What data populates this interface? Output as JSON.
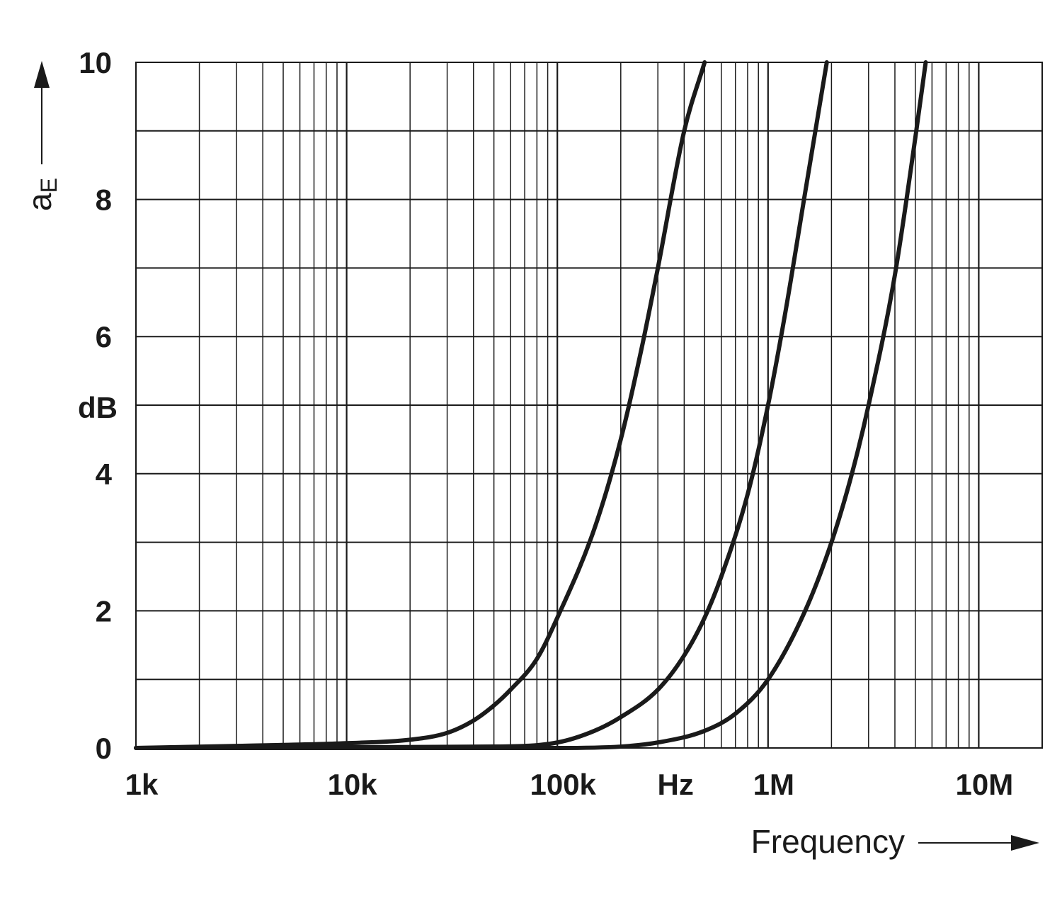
{
  "chart_data": {
    "type": "line",
    "x_scale": "log",
    "xlim": [
      1000,
      20000000
    ],
    "ylim": [
      0,
      10
    ],
    "grid": true,
    "x_ticks": [
      {
        "value": 1000,
        "label": "1k"
      },
      {
        "value": 10000,
        "label": "10k"
      },
      {
        "value": 100000,
        "label": "100k"
      },
      {
        "value": 1000000,
        "label": "1M"
      },
      {
        "value": 10000000,
        "label": "10M"
      }
    ],
    "x_unit": "Hz",
    "x_unit_position": 300000,
    "y_ticks": [
      {
        "value": 0,
        "label": "0"
      },
      {
        "value": 2,
        "label": "2"
      },
      {
        "value": 4,
        "label": "4"
      },
      {
        "value": 6,
        "label": "6"
      },
      {
        "value": 8,
        "label": "8"
      },
      {
        "value": 10,
        "label": "10"
      }
    ],
    "y_unit": "dB",
    "y_unit_position": 5,
    "xlabel": "Frequency",
    "ylabel_main": "a",
    "ylabel_sub": "E",
    "line_color": "#1a1a1a",
    "grid_color": "#1a1a1a",
    "series": [
      {
        "x": [
          1000,
          3000,
          10000,
          20000,
          30000,
          40000,
          50000,
          60000,
          80000,
          100000,
          150000,
          200000,
          250000,
          300000,
          400000,
          500000
        ],
        "y": [
          0.0,
          0.03,
          0.07,
          0.12,
          0.22,
          0.4,
          0.62,
          0.85,
          1.3,
          1.9,
          3.2,
          4.5,
          5.8,
          7.0,
          9.0,
          10.0
        ]
      },
      {
        "x": [
          1000,
          10000,
          50000,
          100000,
          150000,
          200000,
          300000,
          400000,
          500000,
          600000,
          800000,
          1000000,
          1200000,
          1500000,
          1900000
        ],
        "y": [
          0.0,
          0.01,
          0.02,
          0.08,
          0.25,
          0.45,
          0.85,
          1.35,
          1.9,
          2.5,
          3.7,
          5.0,
          6.3,
          8.1,
          10.0
        ]
      },
      {
        "x": [
          1000,
          100000,
          200000,
          300000,
          500000,
          700000,
          1000000,
          1500000,
          2000000,
          2500000,
          3000000,
          4000000,
          5000000,
          5600000
        ],
        "y": [
          0.0,
          0.0,
          0.02,
          0.08,
          0.25,
          0.5,
          1.0,
          2.0,
          3.0,
          4.0,
          5.0,
          6.9,
          8.9,
          10.0
        ]
      }
    ]
  }
}
